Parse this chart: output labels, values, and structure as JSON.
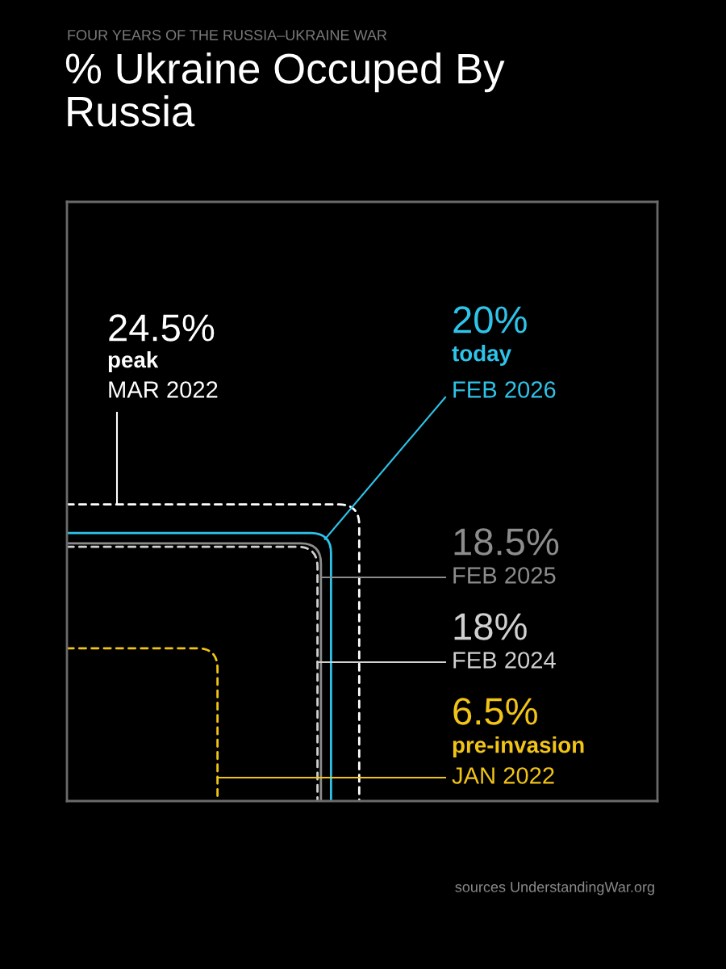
{
  "chart_data": {
    "type": "other",
    "subtitle": "FOUR YEARS OF THE RUSSIA–UKRAINE WAR",
    "title": "% Ukraine Occuped By\nRussia",
    "series": [
      {
        "name": "MAR 2022",
        "color": "#ffffff",
        "values": [
          24.5
        ],
        "value_labels": [
          "24.5%"
        ],
        "line_style": "dashed"
      },
      {
        "name": "FEB 2026",
        "color": "#2ec4ea",
        "values": [
          20
        ],
        "value_labels": [
          "20%"
        ],
        "line_style": "solid"
      },
      {
        "name": "FEB 2025",
        "color": "#8c8c8c",
        "values": [
          18.5
        ],
        "value_labels": [
          "18.5%"
        ],
        "line_style": "solid"
      },
      {
        "name": "FEB 2024",
        "color": "#d0d0d0",
        "values": [
          18
        ],
        "value_labels": [
          "18%"
        ],
        "line_style": "dashed"
      },
      {
        "name": "JAN 2022",
        "color": "#f2c417",
        "values": [
          6.5
        ],
        "value_labels": [
          "6.5%"
        ],
        "line_style": "dashed"
      }
    ],
    "annotations": [
      "peak",
      "today",
      "pre-invasion",
      "sources UnderstandingWar.org"
    ]
  }
}
